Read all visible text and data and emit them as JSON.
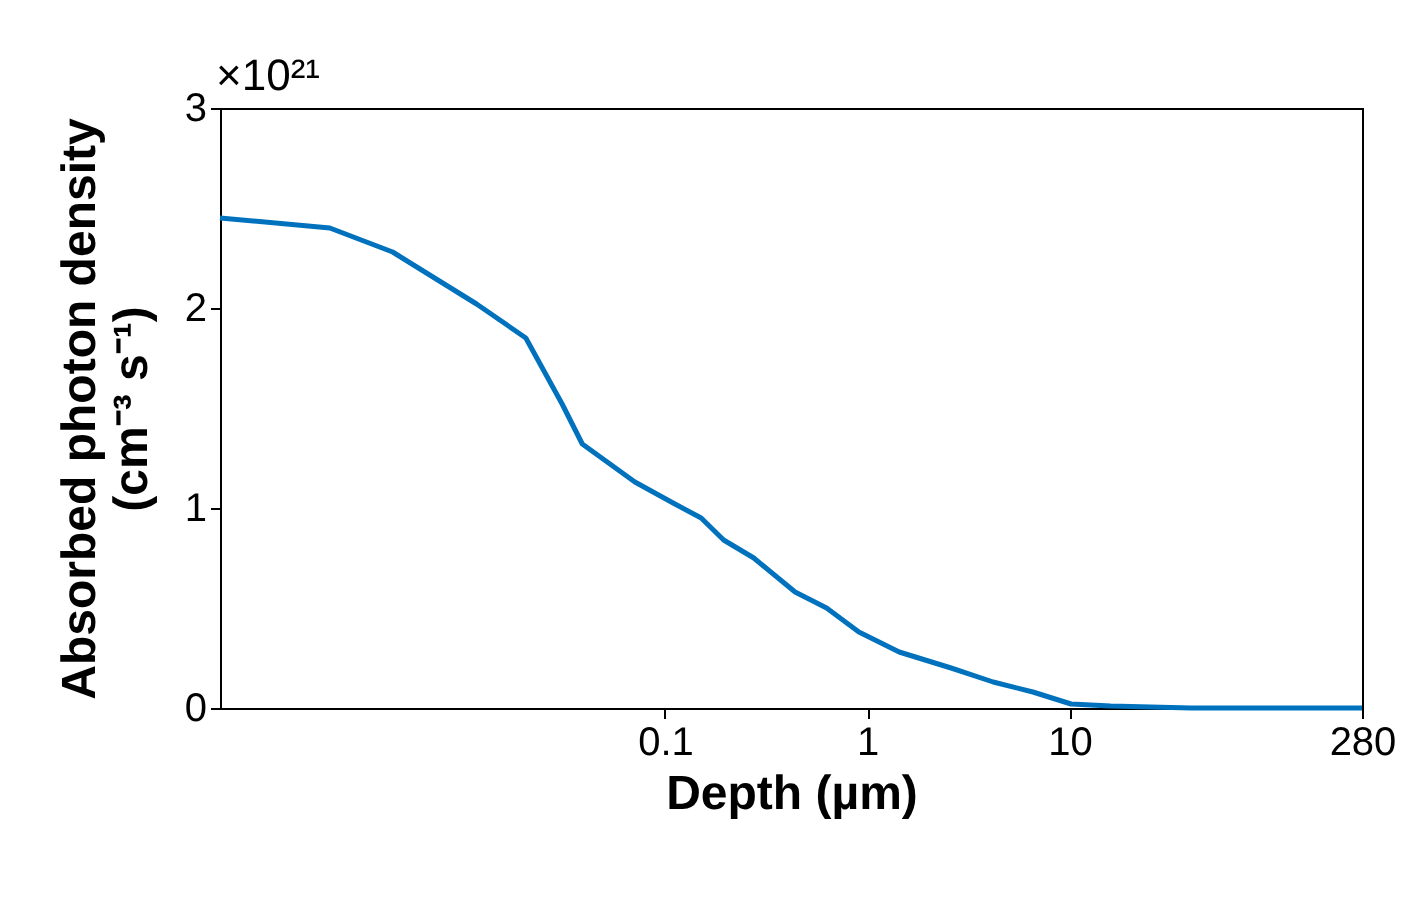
{
  "chart_data": {
    "type": "line",
    "xlabel": "Depth (µm)",
    "ylabel": "Absorbed photon density\n(cm⁻³ s⁻¹)",
    "annotations": [
      "×10²¹"
    ],
    "x": [
      0.00063,
      0.0022,
      0.0045,
      0.0117,
      0.0205,
      0.031,
      0.039,
      0.071,
      0.112,
      0.151,
      0.195,
      0.275,
      0.44,
      0.63,
      0.91,
      1.44,
      2.6,
      4.2,
      6.6,
      10.2,
      16,
      40,
      280
    ],
    "series": [
      {
        "color": "#0072bd",
        "values": [
          2.45,
          2.4,
          2.28,
          2.02,
          1.85,
          1.52,
          1.32,
          1.13,
          1.02,
          0.95,
          0.84,
          0.75,
          0.58,
          0.5,
          0.38,
          0.28,
          0.2,
          0.13,
          0.08,
          0.02,
          0.01,
          0,
          0
        ]
      }
    ],
    "log": "x",
    "xlim": [
      0.00063,
      280
    ],
    "xticks": [
      0.1,
      1,
      10,
      280
    ],
    "ylim": [
      0,
      3
    ],
    "yticks": [
      0,
      1,
      2,
      3
    ],
    "grid": false
  }
}
